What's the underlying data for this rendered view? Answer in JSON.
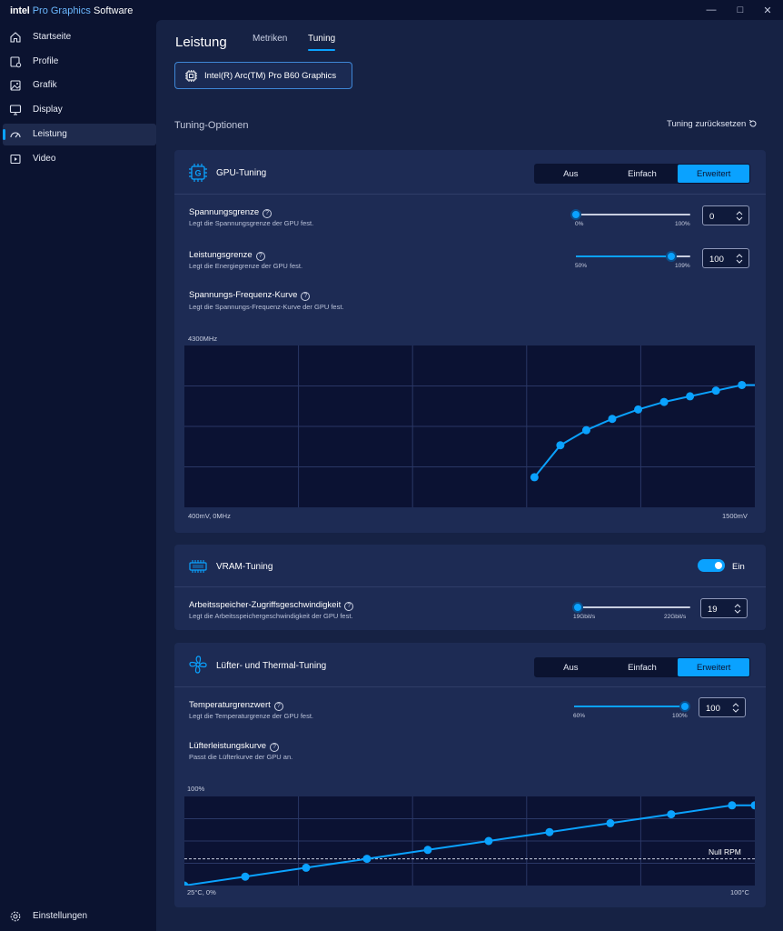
{
  "window": {
    "brand_intel": "intel",
    "brand_pro": "Pro Graphics",
    "brand_software": "Software",
    "minimize_glyph": "—",
    "maximize_glyph": "□",
    "close_glyph": "✕"
  },
  "sidebar": {
    "items": [
      {
        "label": "Startseite",
        "icon": "home-icon"
      },
      {
        "label": "Profile",
        "icon": "profile-icon"
      },
      {
        "label": "Grafik",
        "icon": "image-icon"
      },
      {
        "label": "Display",
        "icon": "monitor-icon"
      },
      {
        "label": "Leistung",
        "icon": "gauge-icon",
        "active": true
      },
      {
        "label": "Video",
        "icon": "video-icon"
      }
    ],
    "settings_label": "Einstellungen"
  },
  "header": {
    "title": "Leistung",
    "tabs": [
      {
        "label": "Metriken",
        "active": false
      },
      {
        "label": "Tuning",
        "active": true
      }
    ],
    "gpu_selector": "Intel(R) Arc(TM) Pro B60 Graphics"
  },
  "tuning": {
    "section_title": "Tuning-Optionen",
    "reset_label": "Tuning zurücksetzen",
    "gpu_tuning": {
      "title": "GPU-Tuning",
      "icon_letter": "G",
      "modes": [
        "Aus",
        "Einfach",
        "Erweitert"
      ],
      "active_mode": "Erweitert",
      "voltage_limit": {
        "label": "Spannungsgrenze",
        "description": "Legt die Spannungsgrenze der GPU fest.",
        "min_label": "0%",
        "max_label": "100%",
        "value": "0",
        "fraction": 0.0
      },
      "power_limit": {
        "label": "Leistungsgrenze",
        "description": "Legt die Energiegrenze der GPU fest.",
        "min_label": "50%",
        "max_label": "109%",
        "value": "100",
        "fraction": 0.83
      },
      "vf_curve": {
        "label": "Spannungs-Frequenz-Kurve",
        "description": "Legt die Spannungs-Frequenz-Kurve der GPU fest.",
        "y_max_label": "4300MHz",
        "origin_label": "400mV, 0MHz",
        "x_max_label": "1500mV"
      }
    },
    "vram_tuning": {
      "title": "VRAM-Tuning",
      "toggle_label": "Ein",
      "enabled": true,
      "memory_speed": {
        "label": "Arbeitsspeicher-Zugriffsgeschwindigkeit",
        "description": "Legt die Arbeitsspeichergeschwindigkeit der GPU fest.",
        "min_label": "19Gbit/s",
        "max_label": "22Gbit/s",
        "value": "19",
        "fraction": 0.0
      }
    },
    "fan_tuning": {
      "title": "Lüfter- und Thermal-Tuning",
      "modes": [
        "Aus",
        "Einfach",
        "Erweitert"
      ],
      "active_mode": "Erweitert",
      "temp_limit": {
        "label": "Temperaturgrenzwert",
        "description": "Legt die Temperaturgrenze der GPU fest.",
        "min_label": "60%",
        "max_label": "100%",
        "value": "100",
        "fraction": 1.0
      },
      "fan_curve": {
        "label": "Lüfterleistungskurve",
        "description": "Passt die Lüfterkurve der GPU an.",
        "y_max_label": "100%",
        "origin_label": "25°C, 0%",
        "x_max_label": "100°C",
        "zero_rpm_label": "Null RPM"
      }
    }
  },
  "chart_data": [
    {
      "type": "line",
      "title": "",
      "xlabel": "",
      "ylabel": "",
      "x_unit": "mV",
      "y_unit": "MHz",
      "xlim": [
        400,
        1500
      ],
      "ylim": [
        0,
        4300
      ],
      "series": [
        {
          "x": [
            1075,
            1125,
            1175,
            1225,
            1275,
            1325,
            1375,
            1425,
            1475,
            1525
          ],
          "y": [
            800,
            1650,
            2050,
            2350,
            2600,
            2800,
            2950,
            3100,
            3250,
            3250
          ]
        }
      ]
    },
    {
      "type": "line",
      "title": "",
      "xlabel": "",
      "ylabel": "",
      "x_unit": "°C",
      "y_unit": "%",
      "xlim": [
        25,
        100
      ],
      "ylim": [
        0,
        100
      ],
      "zero_rpm_threshold": 30,
      "series": [
        {
          "x": [
            25,
            33,
            41,
            49,
            57,
            65,
            73,
            81,
            89,
            97,
            100
          ],
          "y": [
            0,
            10,
            20,
            30,
            40,
            50,
            60,
            70,
            80,
            90,
            90
          ]
        }
      ]
    }
  ]
}
